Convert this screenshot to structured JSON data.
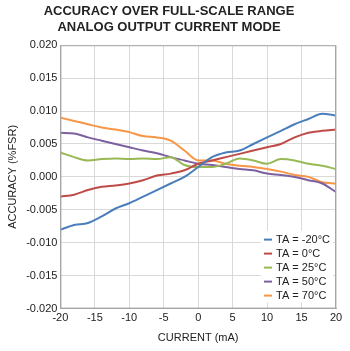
{
  "chart_data": {
    "type": "line",
    "title": [
      "ACCURACY OVER FULL-SCALE RANGE",
      "ANALOG OUTPUT CURRENT MODE"
    ],
    "x_label": "CURRENT (mA)",
    "y_label": "ACCURACY (%FSR)",
    "x": [
      -20,
      -18,
      -16,
      -14,
      -12,
      -10,
      -8,
      -6,
      -4,
      -2,
      0,
      2,
      4,
      6,
      8,
      10,
      12,
      14,
      16,
      18,
      20
    ],
    "series": [
      {
        "name": "TA = -20°C",
        "color": "#4a7ebb",
        "values": [
          -0.008,
          -0.0073,
          -0.007,
          -0.006,
          -0.0048,
          -0.004,
          -0.003,
          -0.002,
          -0.001,
          0.0,
          0.0015,
          0.003,
          0.0037,
          0.004,
          0.005,
          0.006,
          0.007,
          0.008,
          0.0088,
          0.0096,
          0.0093
        ]
      },
      {
        "name": "TA = 0°C",
        "color": "#be4b48",
        "values": [
          -0.003,
          -0.0027,
          -0.002,
          -0.0015,
          -0.0013,
          -0.001,
          -0.0005,
          0.0002,
          0.0005,
          0.001,
          0.002,
          0.0025,
          0.003,
          0.0035,
          0.004,
          0.0045,
          0.005,
          0.006,
          0.0067,
          0.007,
          0.0072
        ]
      },
      {
        "name": "TA = 25°C",
        "color": "#98b954",
        "values": [
          0.0037,
          0.003,
          0.0025,
          0.0027,
          0.0028,
          0.0027,
          0.0028,
          0.0027,
          0.003,
          0.0018,
          0.0015,
          0.0015,
          0.002,
          0.0028,
          0.0025,
          0.002,
          0.0027,
          0.0025,
          0.002,
          0.0017,
          0.0012
        ]
      },
      {
        "name": "TA = 50°C",
        "color": "#7d60a0",
        "values": [
          0.0067,
          0.0066,
          0.006,
          0.0055,
          0.005,
          0.0045,
          0.004,
          0.0036,
          0.003,
          0.0025,
          0.002,
          0.0018,
          0.0015,
          0.0012,
          0.001,
          0.0005,
          0.0003,
          0.0,
          -0.0005,
          -0.001,
          -0.0023
        ]
      },
      {
        "name": "TA = 70°C",
        "color": "#f79646",
        "values": [
          0.009,
          0.0085,
          0.008,
          0.0075,
          0.0072,
          0.0068,
          0.0062,
          0.006,
          0.0055,
          0.004,
          0.0025,
          0.0025,
          0.002,
          0.0017,
          0.0015,
          0.0012,
          0.0008,
          0.0003,
          0.0,
          -0.0008,
          -0.001
        ]
      }
    ],
    "xlim": [
      -20,
      20
    ],
    "xticks": [
      -20,
      -15,
      -10,
      -5,
      0,
      5,
      10,
      15,
      20
    ],
    "ylim": [
      -0.02,
      0.02
    ],
    "yticks": [
      {
        "value": -0.02,
        "label": "-0.020"
      },
      {
        "value": -0.015,
        "label": "-0.015"
      },
      {
        "value": -0.01,
        "label": "-0.010"
      },
      {
        "value": -0.005,
        "label": "-0.005"
      },
      {
        "value": 0,
        "label": "0.000"
      },
      {
        "value": 0.005,
        "label": "0.005"
      },
      {
        "value": 0.01,
        "label": "0.010"
      },
      {
        "value": 0.015,
        "label": "0.015"
      },
      {
        "value": 0.02,
        "label": "0.020"
      }
    ],
    "grid": true,
    "legend": "lower right",
    "marker": "none"
  }
}
